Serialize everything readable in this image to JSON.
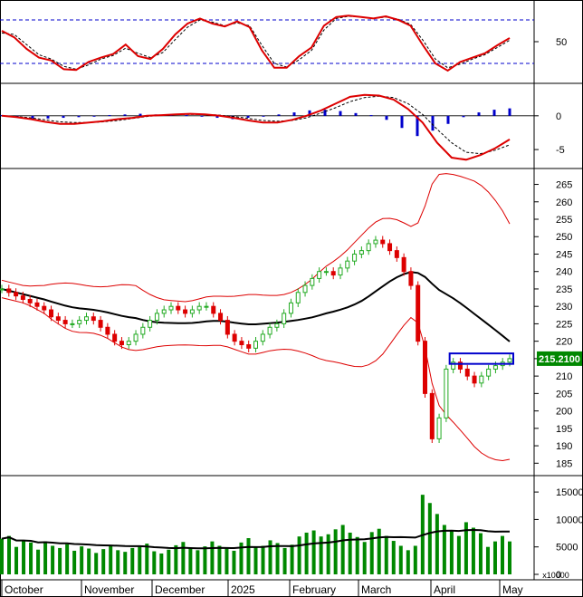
{
  "chart_data": {
    "type": "candlestick-multi-panel",
    "x_axis": {
      "months": [
        "October",
        "November",
        "December",
        "2025",
        "February",
        "March",
        "April",
        "May"
      ]
    },
    "panels": [
      {
        "name": "oscillator",
        "ylim": [
          0,
          100
        ],
        "ticks": [
          50
        ],
        "levels": [
          20,
          80
        ],
        "series": [
          {
            "role": "line",
            "color": "#dd0000",
            "values": [
              65,
              56,
              40,
              28,
              24,
              12,
              11,
              22,
              28,
              33,
              46,
              30,
              26,
              40,
              60,
              75,
              82,
              75,
              71,
              78,
              70,
              38,
              14,
              14,
              30,
              42,
              72,
              84,
              86,
              84,
              82,
              85,
              80,
              72,
              45,
              20,
              10,
              22,
              28,
              34,
              45,
              55
            ]
          },
          {
            "role": "signal",
            "color": "#000000",
            "values": [
              62,
              60,
              46,
              32,
              26,
              16,
              12,
              18,
              26,
              31,
              41,
              34,
              28,
              35,
              53,
              70,
              80,
              77,
              72,
              76,
              72,
              45,
              20,
              15,
              25,
              38,
              66,
              82,
              85,
              84,
              82,
              84,
              81,
              74,
              52,
              26,
              14,
              19,
              26,
              32,
              42,
              52
            ]
          }
        ]
      },
      {
        "name": "macd",
        "ylim": [
          -7,
          4
        ],
        "ticks": [
          0,
          -5
        ],
        "series": [
          {
            "role": "line",
            "color": "#dd0000",
            "values": [
              0,
              -0.2,
              -0.5,
              -0.9,
              -1.2,
              -1.2,
              -1.0,
              -0.8,
              -0.5,
              -0.3,
              0,
              0.1,
              0.2,
              0.3,
              0.2,
              0,
              -0.3,
              -0.7,
              -1,
              -1,
              -0.6,
              0,
              0.8,
              1.8,
              2.8,
              3.1,
              3.0,
              2.4,
              1,
              -1,
              -4,
              -6.2,
              -6.5,
              -5.8,
              -4.8,
              -3.5
            ]
          },
          {
            "role": "signal",
            "color": "#000000",
            "values": [
              0,
              -0.1,
              -0.3,
              -0.6,
              -0.9,
              -1.0,
              -1.0,
              -0.9,
              -0.7,
              -0.4,
              -0.1,
              0.1,
              0.2,
              0.2,
              0.2,
              0.1,
              -0.1,
              -0.4,
              -0.7,
              -0.8,
              -0.7,
              -0.3,
              0.4,
              1.2,
              2.1,
              2.7,
              2.9,
              2.7,
              1.8,
              0.2,
              -2,
              -4,
              -5.4,
              -5.6,
              -5.1,
              -4.3
            ]
          },
          {
            "role": "histogram",
            "color": "#0000cc",
            "values": [
              0.1,
              -0.2,
              -0.4,
              -0.4,
              -0.3,
              -0.2,
              -0.1,
              0.1,
              0.2,
              0.3,
              0.2,
              0.2,
              0.1,
              -0.1,
              -0.3,
              -0.5,
              -0.3,
              -0.1,
              0.2,
              0.5,
              0.8,
              0.9,
              0.7,
              0.4,
              0.1,
              -0.6,
              -1.8,
              -3.0,
              -2.2,
              -1.2,
              -0.2,
              0.5,
              0.9,
              1.1
            ]
          }
        ]
      },
      {
        "name": "price",
        "ylim": [
          183,
          268
        ],
        "ticks": [
          185,
          190,
          195,
          200,
          205,
          210,
          215,
          220,
          225,
          230,
          235,
          240,
          245,
          250,
          255,
          260,
          265
        ],
        "last_price_label": "215.2100",
        "ma_color": "#000000",
        "band_color": "#dd0000",
        "up_color": "#22aa22",
        "down_color": "#dd0000",
        "closes": [
          235,
          234,
          233,
          232,
          231,
          230,
          229,
          227,
          226,
          225,
          225,
          226,
          227,
          226,
          224,
          222,
          220,
          219,
          220,
          222,
          224,
          226,
          228,
          229,
          230,
          229,
          228,
          229,
          230,
          230,
          228,
          226,
          222,
          220,
          219,
          218,
          220,
          222,
          224,
          225,
          228,
          231,
          234,
          236,
          238,
          240,
          240,
          239,
          241,
          243,
          245,
          246,
          248,
          249,
          248,
          246,
          244,
          240,
          236,
          220,
          205,
          192,
          198,
          212,
          214,
          212,
          210,
          208,
          210,
          212,
          213,
          214,
          215
        ]
      },
      {
        "name": "volume",
        "ylim": [
          0,
          17000
        ],
        "ticks": [
          0,
          5000,
          10000,
          15000
        ],
        "unit_label": "x10000",
        "bar_color": "#008800",
        "ma_color": "#000000",
        "values": [
          6500,
          7000,
          5000,
          6200,
          5800,
          4500,
          6000,
          5200,
          4800,
          5500,
          4300,
          5100,
          4700,
          3900,
          4600,
          5200,
          4400,
          4100,
          4800,
          5000,
          5600,
          4200,
          3800,
          4500,
          5300,
          5900,
          4700,
          4400,
          5100,
          6000,
          5200,
          4700,
          4300,
          5800,
          6600,
          4900,
          5200,
          6200,
          5700,
          4800,
          5400,
          6900,
          7600,
          8000,
          6900,
          7300,
          8200,
          9000,
          7600,
          6800,
          5900,
          7700,
          8300,
          7000,
          6100,
          5200,
          4400,
          5200,
          14500,
          13000,
          11000,
          9000,
          8000,
          7000,
          9500,
          8500,
          7500,
          5000,
          6000,
          7000,
          6000
        ]
      }
    ]
  }
}
